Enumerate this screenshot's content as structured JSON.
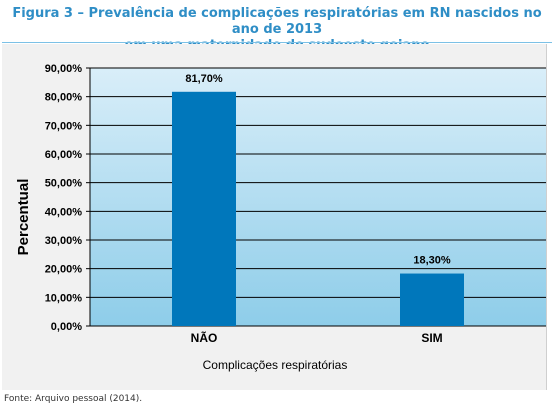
{
  "figure": {
    "title_line1": "Figura 3 – Prevalência de complicações respiratórias em RN nascidos no ano de 2013",
    "title_line2": "em uma maternidade do sudoeste goiano",
    "source": "Fonte: Arquivo pessoal (2014)."
  },
  "colors": {
    "title": "#2f8ec6",
    "bar": "#0077bb",
    "plot_top": "#d9eef9",
    "plot_bottom": "#8ecde9"
  },
  "chart_data": {
    "type": "bar",
    "categories": [
      "NÃO",
      "SIM"
    ],
    "values": [
      81.7,
      18.3
    ],
    "value_labels": [
      "81,70%",
      "18,30%"
    ],
    "xlabel": "Complicações respiratórias",
    "ylabel": "Percentual",
    "ylim": [
      0,
      90
    ],
    "yticks": [
      0,
      10,
      20,
      30,
      40,
      50,
      60,
      70,
      80,
      90
    ],
    "ytick_labels": [
      "0,00%",
      "10,00%",
      "20,00%",
      "30,00%",
      "40,00%",
      "50,00%",
      "60,00%",
      "70,00%",
      "80,00%",
      "90,00%"
    ],
    "grid": true,
    "legend": "none"
  }
}
